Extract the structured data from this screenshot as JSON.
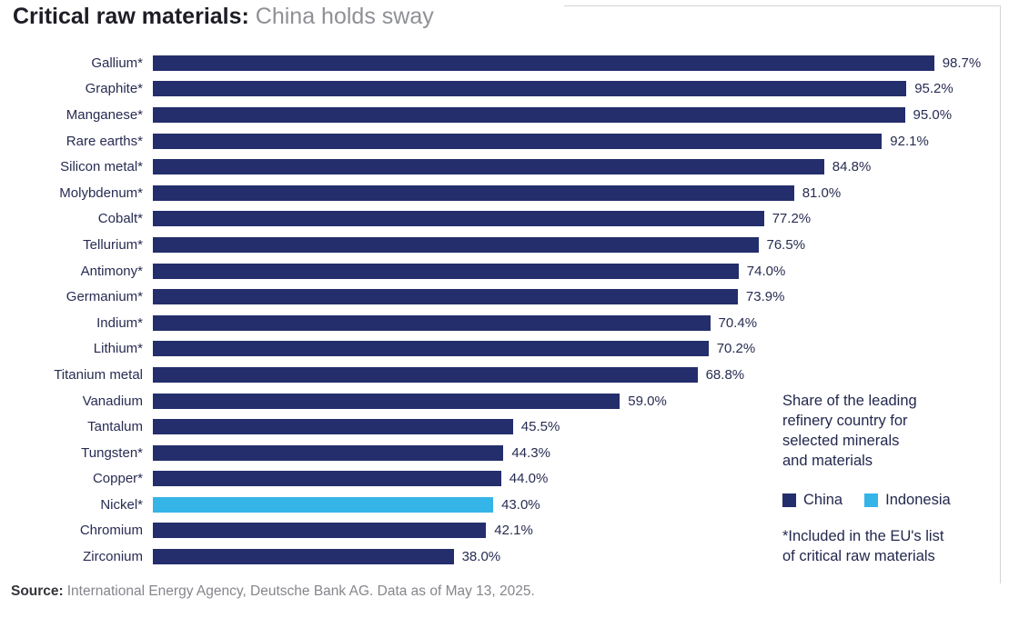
{
  "title": {
    "bold": "Critical raw materials:",
    "light": " China holds sway"
  },
  "chart_data": {
    "type": "bar",
    "orientation": "horizontal",
    "title": "Critical raw materials: China holds sway",
    "xlim": [
      0,
      100
    ],
    "unit": "%",
    "grid": false,
    "legend_position": "right",
    "categories": [
      "Gallium*",
      "Graphite*",
      "Manganese*",
      "Rare earths*",
      "Silicon metal*",
      "Molybdenum*",
      "Cobalt*",
      "Tellurium*",
      "Antimony*",
      "Germanium*",
      "Indium*",
      "Lithium*",
      "Titanium metal",
      "Vanadium",
      "Tantalum",
      "Tungsten*",
      "Copper*",
      "Nickel*",
      "Chromium",
      "Zirconium"
    ],
    "values": [
      98.7,
      95.2,
      95.0,
      92.1,
      84.8,
      81.0,
      77.2,
      76.5,
      74.0,
      73.9,
      70.4,
      70.2,
      68.8,
      59.0,
      45.5,
      44.3,
      44.0,
      43.0,
      42.1,
      38.0
    ],
    "value_labels": [
      "98.7%",
      "95.2%",
      "95.0%",
      "92.1%",
      "84.8%",
      "81.0%",
      "77.2%",
      "76.5%",
      "74.0%",
      "73.9%",
      "70.4%",
      "70.2%",
      "68.8%",
      "59.0%",
      "45.5%",
      "44.3%",
      "44.0%",
      "43.0%",
      "42.1%",
      "38.0%"
    ],
    "bar_series": [
      "China",
      "China",
      "China",
      "China",
      "China",
      "China",
      "China",
      "China",
      "China",
      "China",
      "China",
      "China",
      "China",
      "China",
      "China",
      "China",
      "China",
      "Indonesia",
      "China",
      "China"
    ],
    "colors": {
      "China": "#242e6c",
      "Indonesia": "#35b4e8"
    },
    "legend": [
      {
        "label": "China",
        "color": "#242e6c"
      },
      {
        "label": "Indonesia",
        "color": "#35b4e8"
      }
    ],
    "annotation": "Share of the leading\nrefinery country for\nselected minerals\nand materials",
    "footnote": "*Included in the EU's list\nof critical raw materials"
  },
  "source": {
    "label": "Source:",
    "text": "International Energy Agency, Deutsche Bank AG. Data as of May 13, 2025."
  }
}
